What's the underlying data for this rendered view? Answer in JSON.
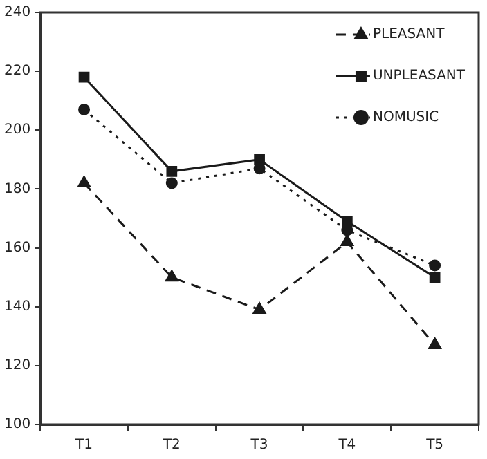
{
  "chart_data": {
    "type": "line",
    "categories": [
      "T1",
      "T2",
      "T3",
      "T4",
      "T5"
    ],
    "series": [
      {
        "name": "PLEASANT",
        "color": "#1a1a1a",
        "values": [
          182,
          150,
          139,
          162,
          127
        ],
        "marker": "triangle",
        "line_style": "dashed"
      },
      {
        "name": "UNPLEASANT",
        "color": "#1a1a1a",
        "values": [
          218,
          186,
          190,
          169,
          150
        ],
        "marker": "square",
        "line_style": "solid"
      },
      {
        "name": "NOMUSIC",
        "color": "#1a1a1a",
        "values": [
          207,
          182,
          187,
          166,
          154
        ],
        "marker": "circle",
        "line_style": "dotted"
      }
    ],
    "ylim": [
      100,
      240
    ],
    "yticks": [
      100,
      120,
      140,
      160,
      180,
      200,
      220,
      240
    ],
    "grid": false,
    "legend": "top right"
  }
}
